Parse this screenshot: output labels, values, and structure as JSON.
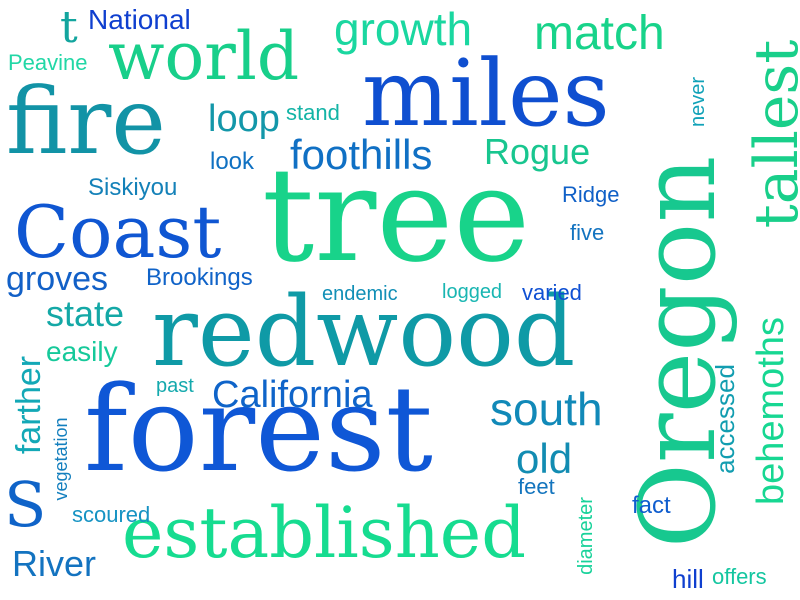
{
  "words": [
    {
      "text": "tree",
      "color": "#18d38a"
    },
    {
      "text": "forest",
      "color": "#0f57d6"
    },
    {
      "text": "Oregon",
      "color": "#17c88f"
    },
    {
      "text": "redwood",
      "color": "#0f9aa6"
    },
    {
      "text": "miles",
      "color": "#0f4fd0"
    },
    {
      "text": "fire",
      "color": "#1293a6"
    },
    {
      "text": "established",
      "color": "#16dc90"
    },
    {
      "text": "Coast",
      "color": "#0f56d2"
    },
    {
      "text": "world",
      "color": "#18cf8a"
    },
    {
      "text": "tallest",
      "color": "#19cf8a"
    },
    {
      "text": "behemoths",
      "color": "#17d792"
    },
    {
      "text": "foothills",
      "color": "#1070c4"
    },
    {
      "text": "match",
      "color": "#18d38a"
    },
    {
      "text": "growth",
      "color": "#1ad7a0"
    },
    {
      "text": "California",
      "color": "#0f64c9"
    },
    {
      "text": "south",
      "color": "#1189b8"
    },
    {
      "text": "Rogue",
      "color": "#18c68f"
    },
    {
      "text": "loop",
      "color": "#1397a9"
    },
    {
      "text": "old",
      "color": "#128cb2"
    },
    {
      "text": "state",
      "color": "#14a8a6"
    },
    {
      "text": "groves",
      "color": "#1260c7"
    },
    {
      "text": "River",
      "color": "#1373c0"
    },
    {
      "text": "farther",
      "color": "#13a8b6"
    },
    {
      "text": "S",
      "color": "#0f63c8"
    },
    {
      "text": "Siskiyou",
      "color": "#1481b8"
    },
    {
      "text": "easily",
      "color": "#16c99a"
    },
    {
      "text": "accessed",
      "color": "#129db0"
    },
    {
      "text": "Brookings",
      "color": "#1063c8"
    },
    {
      "text": "National",
      "color": "#0f3fcf"
    },
    {
      "text": "t",
      "color": "#13a59e"
    },
    {
      "text": "Peavine",
      "color": "#22d7a6"
    },
    {
      "text": "stand",
      "color": "#13b4a6"
    },
    {
      "text": "look",
      "color": "#1071c2"
    },
    {
      "text": "Ridge",
      "color": "#1060c7"
    },
    {
      "text": "five",
      "color": "#1474c0"
    },
    {
      "text": "endemic",
      "color": "#118fb6"
    },
    {
      "text": "logged",
      "color": "#19b6b2"
    },
    {
      "text": "varied",
      "color": "#0f50d3"
    },
    {
      "text": "past",
      "color": "#14a9ad"
    },
    {
      "text": "vegetation",
      "color": "#137fbe"
    },
    {
      "text": "scoured",
      "color": "#1693c3"
    },
    {
      "text": "feet",
      "color": "#1475be"
    },
    {
      "text": "diameter",
      "color": "#18d29a"
    },
    {
      "text": "fact",
      "color": "#0f5dce"
    },
    {
      "text": "never",
      "color": "#11a2b8"
    },
    {
      "text": "hill",
      "color": "#0f3fcf"
    },
    {
      "text": "offers",
      "color": "#14c6a0"
    }
  ]
}
